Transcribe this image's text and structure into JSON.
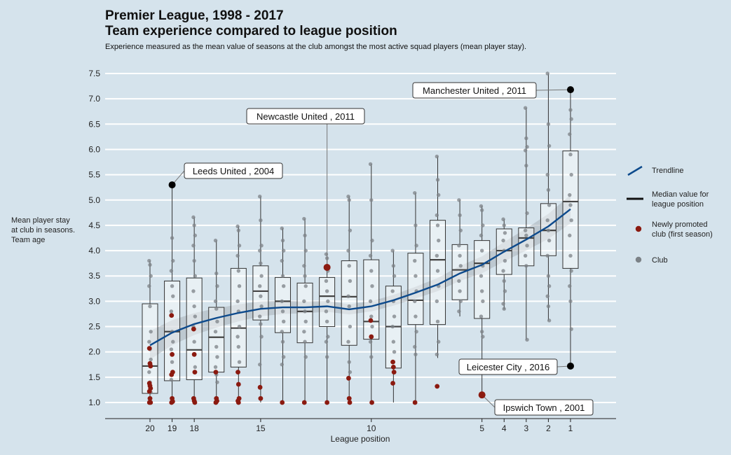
{
  "title": "Premier League, 1998 - 2017\nTeam experience compared to league position",
  "subtitle": "Experience measured as the mean value of seasons at the club amongst the most active squad players (mean player stay).",
  "chart_data": {
    "type": "boxplot",
    "xlabel": "League position",
    "ylabel": "Mean player stay\nat club in seasons.\nTeam age",
    "x_ticks": [
      "20",
      "19",
      "18",
      "15",
      "10",
      "5",
      "4",
      "3",
      "2",
      "1"
    ],
    "y_ticks": [
      "1.0",
      "1.5",
      "2.0",
      "2.5",
      "3.0",
      "3.5",
      "4.0",
      "4.5",
      "5.0",
      "5.5",
      "6.0",
      "6.5",
      "7.0",
      "7.5"
    ],
    "ylim": [
      0.8,
      7.7
    ],
    "xlim": [
      21.2,
      0.0
    ],
    "legend": {
      "placement": "right",
      "items": [
        {
          "label": "Trendline",
          "kind": "line",
          "color": "#0d4a8c"
        },
        {
          "label": "Median value for league position",
          "kind": "bar",
          "color": "#111111"
        },
        {
          "label": "Newly promoted club (first season)",
          "kind": "dot",
          "color": "#8b1a10"
        },
        {
          "label": "Club",
          "kind": "dot",
          "color": "#7c8287"
        }
      ]
    },
    "colors": {
      "trend": "#0d4a8c",
      "promoted": "#8b1a10",
      "club": "#7c8287",
      "grid": "#ffffff",
      "box": "#333333"
    },
    "boxes": [
      {
        "pos": 20,
        "min": 1.0,
        "q1": 1.18,
        "median": 1.72,
        "q3": 2.95,
        "max": 3.8,
        "clubs": [
          3.8,
          3.72,
          3.5,
          3.3,
          2.9,
          2.4,
          2.2,
          2.05,
          1.85,
          1.6,
          1.4,
          1.2
        ],
        "promoted": [
          2.07,
          1.77,
          1.72,
          1.38,
          1.33,
          1.28,
          1.22,
          1.08,
          1.0,
          1.0
        ]
      },
      {
        "pos": 19,
        "min": 1.0,
        "q1": 1.43,
        "median": 2.4,
        "q3": 3.4,
        "max": 5.3,
        "clubs": [
          5.3,
          4.25,
          3.8,
          3.6,
          3.3,
          3.1,
          2.8,
          2.4,
          2.2,
          2.05,
          1.8,
          1.6,
          1.45
        ],
        "promoted": [
          2.72,
          1.95,
          1.6,
          1.55,
          1.08,
          1.02,
          1.0
        ]
      },
      {
        "pos": 18,
        "min": 1.0,
        "q1": 1.45,
        "median": 2.04,
        "q3": 3.46,
        "max": 4.66,
        "clubs": [
          4.66,
          4.5,
          4.3,
          4.1,
          3.8,
          3.5,
          3.2,
          2.9,
          2.7,
          2.5,
          2.2,
          1.7
        ],
        "promoted": [
          2.45,
          1.95,
          1.6,
          1.08,
          1.03,
          1.0
        ]
      },
      {
        "pos": 17,
        "min": 1.0,
        "q1": 1.6,
        "median": 2.29,
        "q3": 2.88,
        "max": 4.2,
        "clubs": [
          4.2,
          3.55,
          3.3,
          3.0,
          2.85,
          2.6,
          2.4,
          2.1,
          1.9,
          1.7,
          1.55,
          1.4
        ],
        "promoted": [
          1.6,
          1.08,
          1.03,
          1.0
        ]
      },
      {
        "pos": 16,
        "min": 1.0,
        "q1": 1.7,
        "median": 2.47,
        "q3": 3.65,
        "max": 4.48,
        "clubs": [
          4.48,
          4.4,
          4.1,
          3.9,
          3.6,
          3.3,
          3.0,
          2.8,
          2.5,
          2.3,
          2.1,
          1.8
        ],
        "promoted": [
          1.6,
          1.36,
          1.08,
          1.03,
          1.0
        ]
      },
      {
        "pos": 15,
        "min": 1.0,
        "q1": 2.63,
        "median": 3.2,
        "q3": 3.7,
        "max": 5.07,
        "clubs": [
          5.07,
          4.6,
          4.1,
          4.0,
          3.75,
          3.5,
          3.3,
          3.1,
          2.9,
          2.7,
          2.55,
          2.3,
          1.75
        ],
        "promoted": [
          1.3,
          1.08
        ]
      },
      {
        "pos": 14,
        "min": 1.0,
        "q1": 2.38,
        "median": 3.0,
        "q3": 3.47,
        "max": 4.44,
        "clubs": [
          4.44,
          4.2,
          4.0,
          3.8,
          3.5,
          3.3,
          3.0,
          2.8,
          2.6,
          2.4,
          2.2,
          1.9,
          1.75
        ],
        "promoted": [
          1.0
        ]
      },
      {
        "pos": 13,
        "min": 1.0,
        "q1": 2.18,
        "median": 2.8,
        "q3": 3.36,
        "max": 4.63,
        "clubs": [
          4.63,
          4.3,
          4.0,
          3.7,
          3.5,
          3.3,
          3.0,
          2.8,
          2.6,
          2.4,
          2.2,
          1.9
        ],
        "promoted": [
          1.0
        ]
      },
      {
        "pos": 12,
        "min": 1.0,
        "q1": 2.5,
        "median": 3.1,
        "q3": 3.47,
        "max": 3.93,
        "clubs": [
          3.93,
          3.85,
          3.6,
          3.4,
          3.2,
          3.0,
          2.8,
          2.6,
          2.3,
          2.2,
          1.9
        ],
        "promoted": [
          3.67,
          1.0
        ]
      },
      {
        "pos": 11,
        "min": 1.0,
        "q1": 2.13,
        "median": 3.09,
        "q3": 3.8,
        "max": 5.07,
        "clubs": [
          5.07,
          5.0,
          4.4,
          4.0,
          3.7,
          3.4,
          3.1,
          2.9,
          2.5,
          2.2,
          1.8,
          1.6
        ],
        "promoted": [
          1.48,
          1.08,
          1.0
        ]
      },
      {
        "pos": 10,
        "min": 1.0,
        "q1": 2.25,
        "median": 2.6,
        "q3": 3.82,
        "max": 5.71,
        "clubs": [
          5.71,
          5.0,
          4.2,
          3.9,
          3.6,
          3.3,
          3.0,
          2.7,
          2.5,
          2.2,
          1.9
        ],
        "promoted": [
          2.62,
          2.3,
          1.0
        ]
      },
      {
        "pos": 9,
        "min": 1.0,
        "q1": 1.68,
        "median": 2.5,
        "q3": 3.3,
        "max": 4.0,
        "clubs": [
          4.0,
          3.7,
          3.5,
          3.2,
          3.0,
          2.7,
          2.5,
          2.2,
          2.0,
          1.8
        ],
        "promoted": [
          1.8,
          1.7,
          1.6,
          1.38
        ]
      },
      {
        "pos": 8,
        "min": 1.0,
        "q1": 2.54,
        "median": 3.02,
        "q3": 3.95,
        "max": 5.14,
        "clubs": [
          5.14,
          4.5,
          4.1,
          3.8,
          3.5,
          3.2,
          3.0,
          2.7,
          2.4,
          2.1,
          1.95
        ],
        "promoted": [
          1.0
        ]
      },
      {
        "pos": 7,
        "min": 1.88,
        "q1": 2.54,
        "median": 3.82,
        "q3": 4.6,
        "max": 5.86,
        "clubs": [
          5.86,
          5.4,
          5.1,
          4.7,
          4.5,
          4.2,
          3.9,
          3.6,
          3.3,
          3.0,
          2.6,
          2.2,
          1.95
        ],
        "promoted": [
          1.32
        ]
      },
      {
        "pos": 6,
        "min": 2.7,
        "q1": 3.03,
        "median": 3.62,
        "q3": 4.12,
        "max": 5.0,
        "clubs": [
          5.0,
          4.7,
          4.4,
          4.1,
          3.9,
          3.7,
          3.4,
          3.2,
          3.0,
          2.8
        ]
      },
      {
        "pos": 5,
        "min": 1.15,
        "q1": 2.66,
        "median": 3.75,
        "q3": 4.2,
        "max": 4.88,
        "clubs": [
          4.88,
          4.8,
          4.5,
          4.3,
          4.0,
          3.7,
          3.5,
          3.2,
          3.0,
          2.7,
          2.4,
          2.3
        ],
        "promoted": [
          1.15
        ]
      },
      {
        "pos": 4,
        "min": 2.84,
        "q1": 3.53,
        "median": 4.0,
        "q3": 4.43,
        "max": 4.62,
        "clubs": [
          4.62,
          4.5,
          4.35,
          4.2,
          4.0,
          3.8,
          3.6,
          3.4,
          3.2,
          2.95,
          2.85
        ]
      },
      {
        "pos": 3,
        "min": 2.24,
        "q1": 3.7,
        "median": 4.25,
        "q3": 4.45,
        "max": 6.82,
        "clubs": [
          6.82,
          6.22,
          6.05,
          5.98,
          5.68,
          4.74,
          4.4,
          4.3,
          4.1,
          3.9,
          3.7,
          2.24
        ]
      },
      {
        "pos": 2,
        "min": 2.62,
        "q1": 3.9,
        "median": 4.4,
        "q3": 4.93,
        "max": 7.5,
        "clubs": [
          7.5,
          6.5,
          6.07,
          5.5,
          5.2,
          4.9,
          4.6,
          4.4,
          4.2,
          3.9,
          3.5,
          3.3,
          3.1,
          2.9,
          2.62
        ]
      },
      {
        "pos": 1,
        "min": 1.72,
        "q1": 3.65,
        "median": 4.97,
        "q3": 5.97,
        "max": 7.18,
        "clubs": [
          7.18,
          6.78,
          6.6,
          6.3,
          5.9,
          5.5,
          5.1,
          4.9,
          4.6,
          4.3,
          3.9,
          3.6,
          3.3,
          3.0,
          2.45,
          1.72
        ]
      }
    ],
    "trend": [
      [
        20,
        2.13
      ],
      [
        19,
        2.38
      ],
      [
        18,
        2.55
      ],
      [
        17,
        2.67
      ],
      [
        16,
        2.77
      ],
      [
        15,
        2.85
      ],
      [
        14,
        2.88
      ],
      [
        13,
        2.88
      ],
      [
        12,
        2.9
      ],
      [
        11,
        2.84
      ],
      [
        10,
        2.9
      ],
      [
        9,
        3.02
      ],
      [
        8,
        3.17
      ],
      [
        7,
        3.33
      ],
      [
        6,
        3.55
      ],
      [
        5,
        3.72
      ],
      [
        4,
        3.98
      ],
      [
        3,
        4.22
      ],
      [
        2,
        4.48
      ],
      [
        1,
        4.82
      ]
    ],
    "annotations": [
      {
        "label": "Manchester United , 2011",
        "pos": 1,
        "value": 7.18
      },
      {
        "label": "Newcastle United , 2011",
        "pos": 12,
        "value": 3.67
      },
      {
        "label": "Leeds United , 2004",
        "pos": 19,
        "value": 5.3
      },
      {
        "label": "Leicester City , 2016",
        "pos": 1,
        "value": 1.72
      },
      {
        "label": "Ipswich Town , 2001",
        "pos": 5,
        "value": 1.15
      }
    ]
  }
}
